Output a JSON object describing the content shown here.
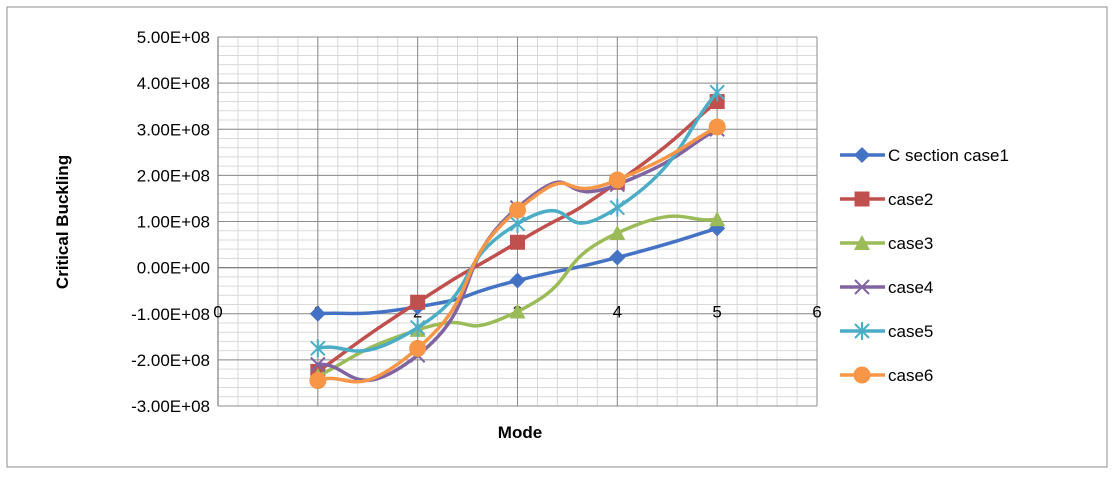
{
  "chart_data": {
    "type": "line",
    "xlabel": "Mode",
    "ylabel": "Critical Buckling",
    "xlim": [
      0,
      6
    ],
    "ylim": [
      -300000000,
      500000000
    ],
    "x_ticks": [
      "0",
      "1",
      "2",
      "3",
      "4",
      "5",
      "6"
    ],
    "y_ticks": [
      "5.00E+08",
      "4.00E+08",
      "3.00E+08",
      "2.00E+08",
      "1.00E+08",
      "0.00E+00",
      "-1.00E+08",
      "-2.00E+08",
      "-3.00E+08"
    ],
    "grid": true,
    "legend_position": "right",
    "x": [
      1,
      2,
      3,
      4,
      5
    ],
    "series": [
      {
        "name": "C section case1",
        "color": "#4472C4",
        "marker": "diamond",
        "values": [
          -100000000,
          -85000000,
          -28000000,
          22000000,
          85000000
        ]
      },
      {
        "name": "case2",
        "color": "#C0504D",
        "marker": "square",
        "values": [
          -225000000,
          -75000000,
          55000000,
          185000000,
          360000000
        ]
      },
      {
        "name": "case3",
        "color": "#9BBB59",
        "marker": "triangle",
        "values": [
          -235000000,
          -135000000,
          -95000000,
          75000000,
          105000000
        ]
      },
      {
        "name": "case4",
        "color": "#8064A2",
        "marker": "x",
        "values": [
          -210000000,
          -190000000,
          130000000,
          180000000,
          300000000
        ]
      },
      {
        "name": "case5",
        "color": "#4BACC6",
        "marker": "star",
        "values": [
          -175000000,
          -130000000,
          95000000,
          130000000,
          380000000
        ]
      },
      {
        "name": "case6",
        "color": "#F79646",
        "marker": "circle",
        "values": [
          -245000000,
          -175000000,
          125000000,
          190000000,
          305000000
        ]
      }
    ]
  }
}
